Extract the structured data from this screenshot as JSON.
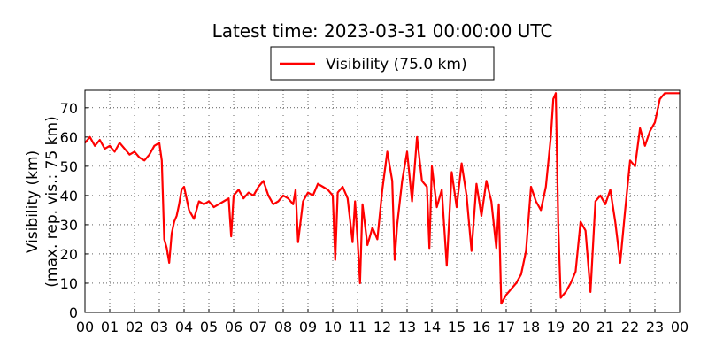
{
  "chart_data": {
    "type": "line",
    "title": "Latest time: 2023-03-31 00:00:00 UTC",
    "ylabel": "Visibility (km)",
    "ylabel_line2": "(max. rep. vis.: 75 km)",
    "xlabel": "",
    "ylim": [
      0,
      76
    ],
    "xlim": [
      0,
      24
    ],
    "yticks": [
      0,
      10,
      20,
      30,
      40,
      50,
      60,
      70
    ],
    "xtick_labels": [
      "00",
      "01",
      "02",
      "03",
      "04",
      "05",
      "06",
      "07",
      "08",
      "09",
      "10",
      "11",
      "12",
      "13",
      "14",
      "15",
      "16",
      "17",
      "18",
      "19",
      "20",
      "21",
      "22",
      "23",
      "00"
    ],
    "grid": true,
    "legend": {
      "placement": "top-center"
    },
    "series": [
      {
        "name": "Visibility (75.0 km)",
        "color": "#ff0000",
        "x": [
          0,
          0.2,
          0.4,
          0.6,
          0.8,
          1.0,
          1.2,
          1.4,
          1.6,
          1.8,
          2.0,
          2.2,
          2.4,
          2.6,
          2.8,
          3.0,
          3.1,
          3.2,
          3.3,
          3.4,
          3.5,
          3.6,
          3.7,
          3.8,
          3.9,
          4.0,
          4.2,
          4.4,
          4.6,
          4.8,
          5.0,
          5.2,
          5.4,
          5.6,
          5.8,
          5.9,
          6.0,
          6.2,
          6.4,
          6.6,
          6.8,
          7.0,
          7.2,
          7.4,
          7.6,
          7.8,
          8.0,
          8.2,
          8.4,
          8.5,
          8.6,
          8.8,
          9.0,
          9.2,
          9.4,
          9.6,
          9.8,
          10.0,
          10.1,
          10.2,
          10.4,
          10.6,
          10.8,
          10.9,
          11.0,
          11.1,
          11.2,
          11.4,
          11.6,
          11.8,
          12.0,
          12.2,
          12.4,
          12.5,
          12.6,
          12.8,
          13.0,
          13.2,
          13.4,
          13.6,
          13.8,
          13.9,
          14.0,
          14.2,
          14.4,
          14.6,
          14.8,
          15.0,
          15.2,
          15.4,
          15.6,
          15.8,
          16.0,
          16.2,
          16.4,
          16.6,
          16.7,
          16.8,
          17.0,
          17.2,
          17.4,
          17.6,
          17.8,
          18.0,
          18.2,
          18.4,
          18.6,
          18.8,
          18.9,
          19.0,
          19.1,
          19.2,
          19.4,
          19.6,
          19.8,
          20.0,
          20.2,
          20.4,
          20.6,
          20.8,
          21.0,
          21.2,
          21.4,
          21.6,
          21.8,
          22.0,
          22.2,
          22.4,
          22.6,
          22.8,
          23.0,
          23.2,
          23.4,
          23.6,
          23.8,
          24.0
        ],
        "y": [
          58,
          60,
          57,
          59,
          56,
          57,
          55,
          58,
          56,
          54,
          55,
          53,
          52,
          54,
          57,
          58,
          52,
          25,
          22,
          17,
          27,
          31,
          33,
          37,
          42,
          43,
          35,
          32,
          38,
          37,
          38,
          36,
          37,
          38,
          39,
          26,
          40,
          42,
          39,
          41,
          40,
          43,
          45,
          40,
          37,
          38,
          40,
          39,
          37,
          42,
          24,
          38,
          41,
          40,
          44,
          43,
          42,
          40,
          18,
          41,
          43,
          39,
          24,
          38,
          25,
          10,
          37,
          23,
          29,
          25,
          42,
          55,
          45,
          18,
          30,
          45,
          55,
          38,
          60,
          45,
          43,
          22,
          50,
          36,
          42,
          16,
          48,
          36,
          51,
          40,
          21,
          44,
          33,
          45,
          38,
          22,
          37,
          3,
          6,
          8,
          10,
          13,
          21,
          43,
          38,
          35,
          43,
          60,
          73,
          75,
          30,
          5,
          7,
          10,
          14,
          31,
          28,
          7,
          38,
          40,
          37,
          42,
          31,
          17,
          35,
          52,
          50,
          63,
          57,
          62,
          65,
          73,
          75,
          75,
          75,
          75
        ]
      }
    ]
  }
}
